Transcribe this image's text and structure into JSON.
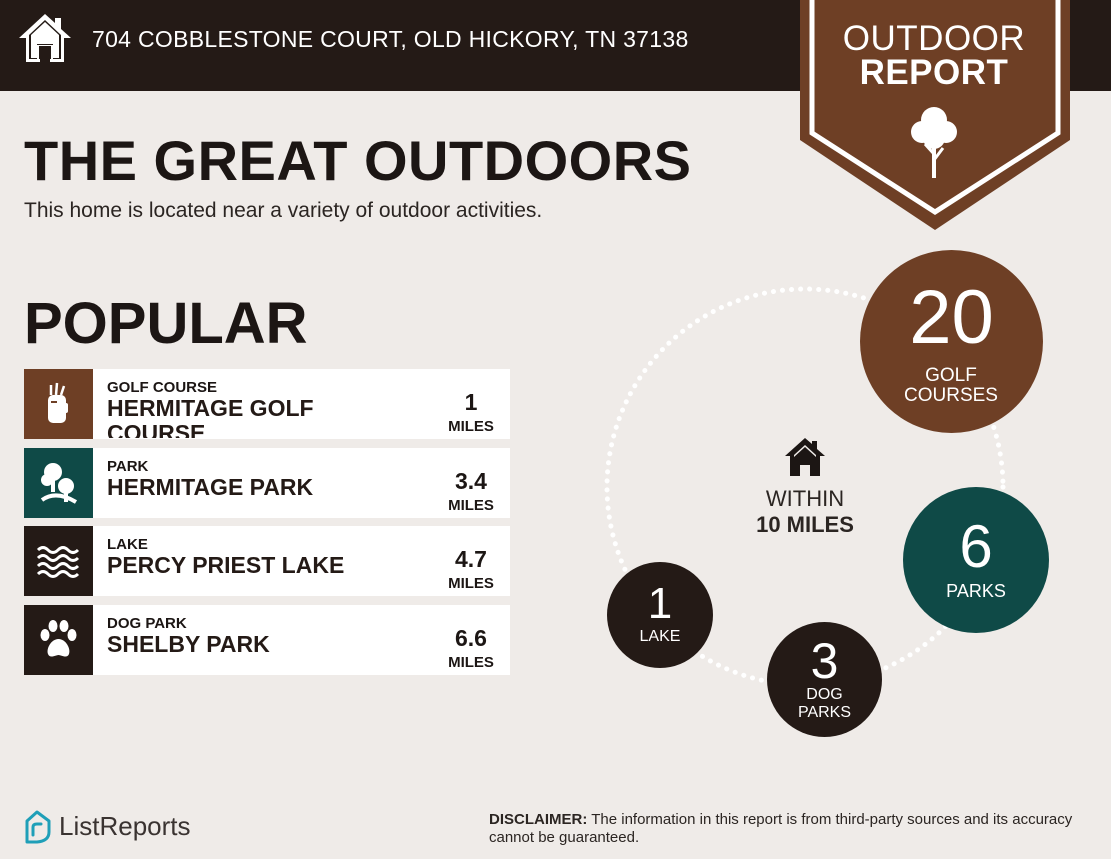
{
  "header": {
    "address": "704 COBBLESTONE COURT, OLD HICKORY, TN 37138",
    "home_icon": "house-icon",
    "background_color": "#241a16"
  },
  "banner": {
    "title_line1": "OUTDOOR",
    "title_line2": "REPORT",
    "icon": "tree-icon",
    "color": "#6e3f25"
  },
  "intro": {
    "headline": "THE GREAT OUTDOORS",
    "subline": "This home is located near a variety of outdoor activities."
  },
  "popular": {
    "heading": "POPULAR",
    "items": [
      {
        "category": "GOLF COURSE",
        "name": "HERMITAGE GOLF COURSE",
        "distance": "1",
        "unit": "MILES",
        "icon": "golf-bag-icon",
        "color": "#6e3f25"
      },
      {
        "category": "PARK",
        "name": "HERMITAGE PARK",
        "distance": "3.4",
        "unit": "MILES",
        "icon": "park-trees-icon",
        "color": "#0f4a47"
      },
      {
        "category": "LAKE",
        "name": "PERCY PRIEST LAKE",
        "distance": "4.7",
        "unit": "MILES",
        "icon": "water-waves-icon",
        "color": "#241a16"
      },
      {
        "category": "DOG PARK",
        "name": "SHELBY PARK",
        "distance": "6.6",
        "unit": "MILES",
        "icon": "paw-print-icon",
        "color": "#241a16"
      }
    ]
  },
  "radius": {
    "center_icon": "house-icon",
    "within_line1": "WITHIN",
    "within_line2": "10 MILES",
    "counts": [
      {
        "number": "20",
        "label": "GOLF COURSES",
        "color": "#6e3f25"
      },
      {
        "number": "6",
        "label": "PARKS",
        "color": "#0f4a47"
      },
      {
        "number": "3",
        "label_line1": "DOG",
        "label_line2": "PARKS",
        "color": "#241a16"
      },
      {
        "number": "1",
        "label": "LAKE",
        "color": "#241a16"
      }
    ]
  },
  "footer": {
    "brand": "ListReports",
    "brand_icon": "listreports-logo-icon",
    "disclaimer_label": "DISCLAIMER:",
    "disclaimer_text": " The information in this report is from third-party sources and its accuracy cannot be guaranteed."
  }
}
